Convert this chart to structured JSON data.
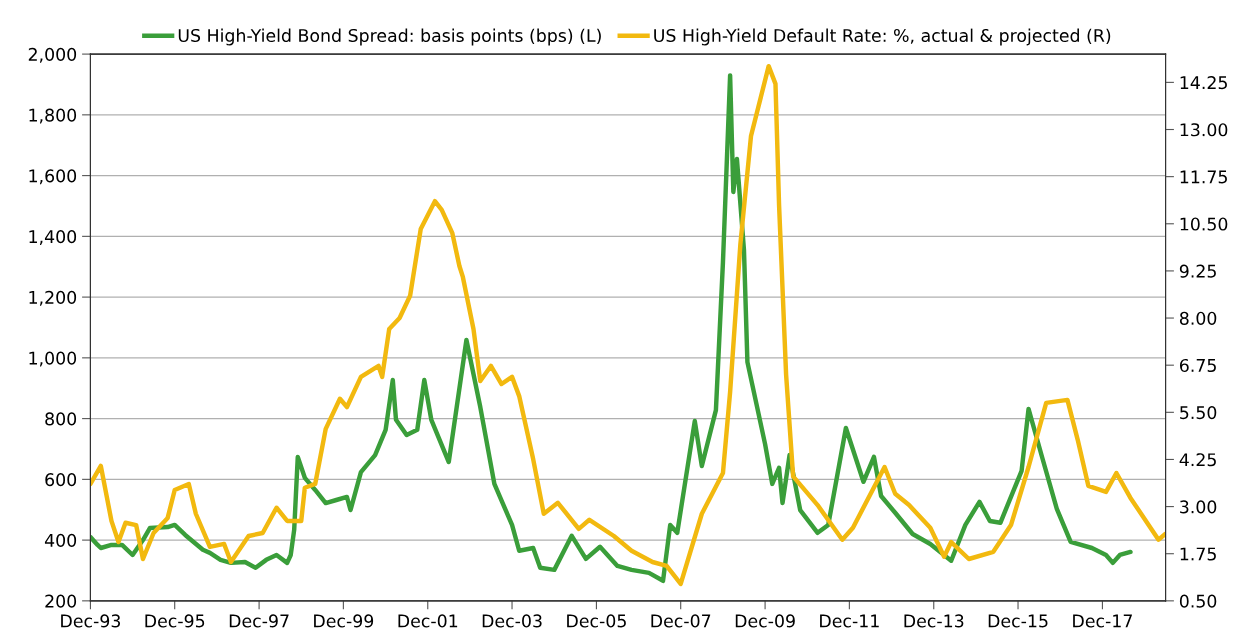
{
  "chart_data": {
    "type": "line",
    "xlim": [
      "1993-12",
      "2019-06"
    ],
    "xticks": [
      {
        "value": "1993-12",
        "label": "Dec-93"
      },
      {
        "value": "1995-12",
        "label": "Dec-95"
      },
      {
        "value": "1997-12",
        "label": "Dec-97"
      },
      {
        "value": "1999-12",
        "label": "Dec-99"
      },
      {
        "value": "2001-12",
        "label": "Dec-01"
      },
      {
        "value": "2003-12",
        "label": "Dec-03"
      },
      {
        "value": "2005-12",
        "label": "Dec-05"
      },
      {
        "value": "2007-12",
        "label": "Dec-07"
      },
      {
        "value": "2009-12",
        "label": "Dec-09"
      },
      {
        "value": "2011-12",
        "label": "Dec-11"
      },
      {
        "value": "2013-12",
        "label": "Dec-13"
      },
      {
        "value": "2015-12",
        "label": "Dec-15"
      },
      {
        "value": "2017-12",
        "label": "Dec-17"
      }
    ],
    "ylim": [
      200,
      2000
    ],
    "yticks": [
      200,
      400,
      600,
      800,
      {
        "value": 1000,
        "label": "1,000"
      },
      {
        "value": 1200,
        "label": "1,200"
      },
      {
        "value": 1400,
        "label": "1,400"
      },
      {
        "value": 1600,
        "label": "1,600"
      },
      {
        "value": 1800,
        "label": "1,800"
      },
      {
        "value": 2000,
        "label": "2,000"
      }
    ],
    "y2lim": [
      0.5,
      15
    ],
    "y2ticks": [
      {
        "value": 0.5,
        "label": "0.50"
      },
      1.75,
      {
        "value": 3,
        "label": "3.00"
      },
      4.25,
      {
        "value": 5.5,
        "label": "5.50"
      },
      6.75,
      {
        "value": 8,
        "label": "8.00"
      },
      9.25,
      {
        "value": 10.5,
        "label": "10.50"
      },
      11.75,
      {
        "value": 13,
        "label": "13.00"
      },
      14.25
    ],
    "grid": "y",
    "legend": "top",
    "marker": "none",
    "line_style": "solid",
    "series": [
      {
        "name": "US High-Yield Bond Spread: basis points (bps) (L)",
        "color": "#3a9e3a",
        "x": [
          "1993-12",
          "1994-02",
          "1994-03",
          "1994-06",
          "1994-09",
          "1994-12",
          "1995-03",
          "1995-05",
          "1995-10",
          "1995-12",
          "1996-03",
          "1996-08",
          "1996-10",
          "1997-01",
          "1997-04",
          "1997-08",
          "1997-11",
          "1998-02",
          "1998-05",
          "1998-08",
          "1998-09",
          "1998-10",
          "1998-11",
          "1999-01",
          "1999-04",
          "1999-07",
          "1999-10",
          "2000-01",
          "2000-02",
          "2000-05",
          "2000-09",
          "2000-12",
          "2001-02",
          "2001-03",
          "2001-06",
          "2001-09",
          "2001-11",
          "2002-01",
          "2002-06",
          "2002-11",
          "2003-03",
          "2003-07",
          "2003-12",
          "2004-02",
          "2004-06",
          "2004-08",
          "2004-12",
          "2005-05",
          "2005-09",
          "2006-01",
          "2006-06",
          "2006-10",
          "2007-03",
          "2007-07",
          "2007-09",
          "2007-11",
          "2008-04",
          "2008-06",
          "2008-10",
          "2008-12",
          "2009-02",
          "2009-03",
          "2009-04",
          "2009-06",
          "2009-07",
          "2009-12",
          "2010-02",
          "2010-04",
          "2010-05",
          "2010-07",
          "2010-10",
          "2011-03",
          "2011-06",
          "2011-11",
          "2012-04",
          "2012-07",
          "2012-09",
          "2013-01",
          "2013-06",
          "2013-11",
          "2014-05",
          "2014-09",
          "2015-01",
          "2015-04",
          "2015-07",
          "2016-01",
          "2016-03",
          "2016-07",
          "2016-11",
          "2017-03",
          "2017-09",
          "2018-01",
          "2018-03",
          "2018-05",
          "2018-08"
        ],
        "values": [
          410,
          384,
          374,
          384,
          384,
          351,
          400,
          440,
          443,
          450,
          417,
          368,
          358,
          335,
          325,
          328,
          309,
          335,
          351,
          325,
          351,
          434,
          674,
          605,
          565,
          522,
          532,
          542,
          499,
          624,
          680,
          763,
          927,
          796,
          746,
          763,
          927,
          796,
          657,
          1059,
          838,
          585,
          450,
          365,
          374,
          309,
          302,
          414,
          338,
          378,
          315,
          302,
          292,
          266,
          450,
          424,
          792,
          644,
          828,
          1315,
          1930,
          1546,
          1655,
          1355,
          986,
          716,
          585,
          638,
          522,
          680,
          499,
          424,
          450,
          769,
          592,
          674,
          545,
          490,
          420,
          387,
          332,
          450,
          526,
          463,
          457,
          628,
          832,
          667,
          503,
          394,
          374,
          351,
          325,
          351,
          361
        ]
      },
      {
        "name": "US High-Yield Default Rate: %, actual & projected (R)",
        "color": "#f2b90f",
        "axis": "y2",
        "x": [
          "1993-12",
          "1994-03",
          "1994-06",
          "1994-08",
          "1994-10",
          "1995-01",
          "1995-03",
          "1995-06",
          "1995-10",
          "1995-12",
          "1996-04",
          "1996-06",
          "1996-10",
          "1997-02",
          "1997-04",
          "1997-09",
          "1998-01",
          "1998-05",
          "1998-08",
          "1998-12",
          "1999-01",
          "1999-04",
          "1999-07",
          "1999-11",
          "2000-01",
          "2000-05",
          "2000-10",
          "2000-11",
          "2001-01",
          "2001-04",
          "2001-07",
          "2001-10",
          "2002-02",
          "2002-04",
          "2002-07",
          "2002-09",
          "2002-10",
          "2003-01",
          "2003-03",
          "2003-06",
          "2003-09",
          "2003-12",
          "2004-02",
          "2004-06",
          "2004-09",
          "2005-01",
          "2005-07",
          "2005-10",
          "2006-05",
          "2006-10",
          "2007-04",
          "2007-08",
          "2007-12",
          "2008-06",
          "2008-12",
          "2009-02",
          "2009-05",
          "2009-08",
          "2010-01",
          "2010-03",
          "2010-04",
          "2010-06",
          "2010-08",
          "2011-03",
          "2011-10",
          "2012-01",
          "2012-10",
          "2013-01",
          "2013-05",
          "2013-11",
          "2014-03",
          "2014-05",
          "2014-10",
          "2015-05",
          "2015-10",
          "2016-03",
          "2016-08",
          "2017-02",
          "2017-05",
          "2017-08",
          "2018-01",
          "2018-04",
          "2018-08",
          "2019-04",
          "2019-06"
        ],
        "values": [
          3.6,
          4.08,
          2.62,
          2.06,
          2.57,
          2.51,
          1.61,
          2.3,
          2.7,
          3.44,
          3.6,
          2.81,
          1.93,
          2.01,
          1.53,
          2.22,
          2.3,
          2.97,
          2.62,
          2.62,
          3.5,
          3.6,
          5.06,
          5.86,
          5.64,
          6.44,
          6.73,
          6.44,
          7.71,
          8.0,
          8.59,
          10.36,
          11.1,
          10.87,
          10.26,
          9.38,
          9.09,
          7.71,
          6.33,
          6.73,
          6.25,
          6.44,
          5.93,
          4.26,
          2.81,
          3.1,
          2.41,
          2.65,
          2.22,
          1.83,
          1.53,
          1.43,
          0.95,
          2.81,
          3.89,
          6.04,
          9.96,
          12.83,
          14.68,
          14.21,
          11.0,
          6.5,
          3.8,
          3.04,
          2.12,
          2.44,
          4.05,
          3.34,
          3.04,
          2.44,
          1.67,
          2.06,
          1.61,
          1.8,
          2.51,
          4.05,
          5.75,
          5.83,
          4.77,
          3.55,
          3.39,
          3.89,
          3.23,
          2.12,
          2.28
        ]
      }
    ]
  }
}
